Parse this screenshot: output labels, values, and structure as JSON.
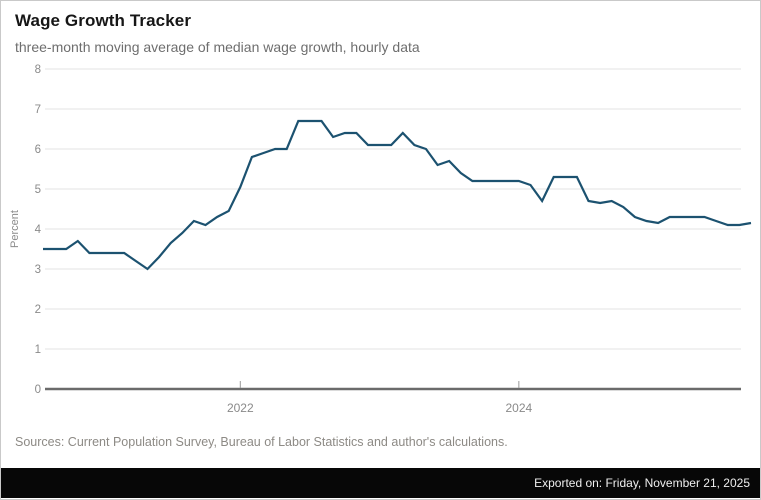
{
  "header": {
    "title": "Wage Growth Tracker",
    "subtitle": "three-month moving average of median wage growth, hourly data"
  },
  "chart_data": {
    "type": "line",
    "title": "Wage Growth Tracker",
    "subtitle": "three-month moving average of median wage growth, hourly data",
    "xlabel": "",
    "ylabel": "Percent",
    "ylim": [
      0,
      8
    ],
    "yticks": [
      0,
      1,
      2,
      3,
      4,
      5,
      6,
      7,
      8
    ],
    "grid": "horizontal",
    "legend": "none",
    "line_color": "#1c5270",
    "grid_color": "#e3e3e3",
    "zero_axis_color": "#6b6b6b",
    "tick_label_color": "#8a8a8a",
    "xticks": [
      {
        "label": "2022",
        "month_index": 17
      },
      {
        "label": "2024",
        "month_index": 41
      }
    ],
    "x": [
      "2020-08",
      "2020-09",
      "2020-10",
      "2020-11",
      "2020-12",
      "2021-01",
      "2021-02",
      "2021-03",
      "2021-04",
      "2021-05",
      "2021-06",
      "2021-07",
      "2021-08",
      "2021-09",
      "2021-10",
      "2021-11",
      "2021-12",
      "2022-01",
      "2022-02",
      "2022-03",
      "2022-04",
      "2022-05",
      "2022-06",
      "2022-07",
      "2022-08",
      "2022-09",
      "2022-10",
      "2022-11",
      "2022-12",
      "2023-01",
      "2023-02",
      "2023-03",
      "2023-04",
      "2023-05",
      "2023-06",
      "2023-07",
      "2023-08",
      "2023-09",
      "2023-10",
      "2023-11",
      "2023-12",
      "2024-01",
      "2024-02",
      "2024-03",
      "2024-04",
      "2024-05",
      "2024-06",
      "2024-07",
      "2024-08",
      "2024-09",
      "2024-10",
      "2024-11",
      "2024-12",
      "2025-01",
      "2025-02",
      "2025-03",
      "2025-04",
      "2025-05",
      "2025-06",
      "2025-07",
      "2025-08",
      "2025-09"
    ],
    "values": [
      3.5,
      3.5,
      3.5,
      3.7,
      3.4,
      3.4,
      3.4,
      3.4,
      3.2,
      3.0,
      3.3,
      3.65,
      3.9,
      4.2,
      4.1,
      4.3,
      4.45,
      5.05,
      5.8,
      5.9,
      6.0,
      6.0,
      6.7,
      6.7,
      6.7,
      6.3,
      6.4,
      6.4,
      6.1,
      6.1,
      6.1,
      6.4,
      6.1,
      6.0,
      5.6,
      5.7,
      5.4,
      5.2,
      5.2,
      5.2,
      5.2,
      5.2,
      5.1,
      4.7,
      5.3,
      5.3,
      5.3,
      4.7,
      4.65,
      4.7,
      4.55,
      4.3,
      4.2,
      4.15,
      4.3,
      4.3,
      4.3,
      4.3,
      4.2,
      4.1,
      4.1,
      4.15
    ]
  },
  "footer": {
    "sources": "Sources: Current Population Survey, Bureau of Labor Statistics and author's calculations.",
    "exported": "Exported on: Friday, November 21, 2025"
  }
}
